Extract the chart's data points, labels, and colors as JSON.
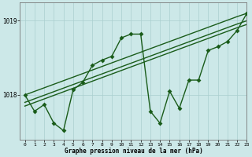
{
  "title": "Graphe pression niveau de la mer (hPa)",
  "bg_color": "#cce8e8",
  "line_color": "#1a5c1a",
  "grid_color": "#aacfcf",
  "xlim": [
    -0.5,
    23
  ],
  "ylim": [
    1017.4,
    1019.25
  ],
  "yticks": [
    1018,
    1019
  ],
  "xticks": [
    0,
    1,
    2,
    3,
    4,
    5,
    6,
    7,
    8,
    9,
    10,
    11,
    12,
    13,
    14,
    15,
    16,
    17,
    18,
    19,
    20,
    21,
    22,
    23
  ],
  "series1": [
    1018.0,
    1017.78,
    1017.87,
    1017.62,
    1017.52,
    1018.07,
    1018.17,
    1018.4,
    1018.47,
    1018.52,
    1018.77,
    1018.82,
    1018.82,
    1017.78,
    1017.62,
    1018.05,
    1017.82,
    1018.2,
    1018.2,
    1018.6,
    1018.65,
    1018.72,
    1018.87,
    1019.1
  ],
  "series2_x": [
    0,
    1,
    2,
    3,
    4,
    5,
    6,
    7,
    8,
    9,
    10,
    11,
    12,
    13,
    14,
    15,
    16,
    17,
    18,
    19,
    20,
    21,
    22,
    23
  ],
  "series2": [
    1018.0,
    1017.78,
    1017.87,
    1017.62,
    1017.52,
    1018.07,
    1018.17,
    1018.4,
    1018.47,
    1018.52,
    1018.77,
    1018.82,
    1018.82,
    1017.78,
    1017.62,
    1018.05,
    1017.82,
    1018.2,
    1018.2,
    1018.6,
    1018.65,
    1018.72,
    1018.87,
    1019.1
  ],
  "trend1": [
    1018.0,
    1018.048,
    1018.096,
    1018.144,
    1018.192,
    1018.24,
    1018.288,
    1018.336,
    1018.384,
    1018.432,
    1018.48,
    1018.528,
    1018.576,
    1018.624,
    1018.672,
    1018.72,
    1018.768,
    1018.816,
    1018.864,
    1018.912,
    1018.96,
    1019.008,
    1019.056,
    1019.1
  ],
  "trend2": [
    1017.85,
    1017.898,
    1017.946,
    1017.994,
    1018.042,
    1018.09,
    1018.138,
    1018.186,
    1018.234,
    1018.282,
    1018.33,
    1018.378,
    1018.426,
    1018.474,
    1018.522,
    1018.57,
    1018.618,
    1018.666,
    1018.714,
    1018.762,
    1018.81,
    1018.858,
    1018.906,
    1018.95
  ],
  "trend3": [
    1017.9,
    1017.948,
    1017.996,
    1018.044,
    1018.092,
    1018.14,
    1018.188,
    1018.236,
    1018.284,
    1018.332,
    1018.38,
    1018.428,
    1018.476,
    1018.524,
    1018.572,
    1018.62,
    1018.668,
    1018.716,
    1018.764,
    1018.812,
    1018.86,
    1018.908,
    1018.956,
    1019.0
  ],
  "linewidth": 1.0,
  "marker_size": 9
}
